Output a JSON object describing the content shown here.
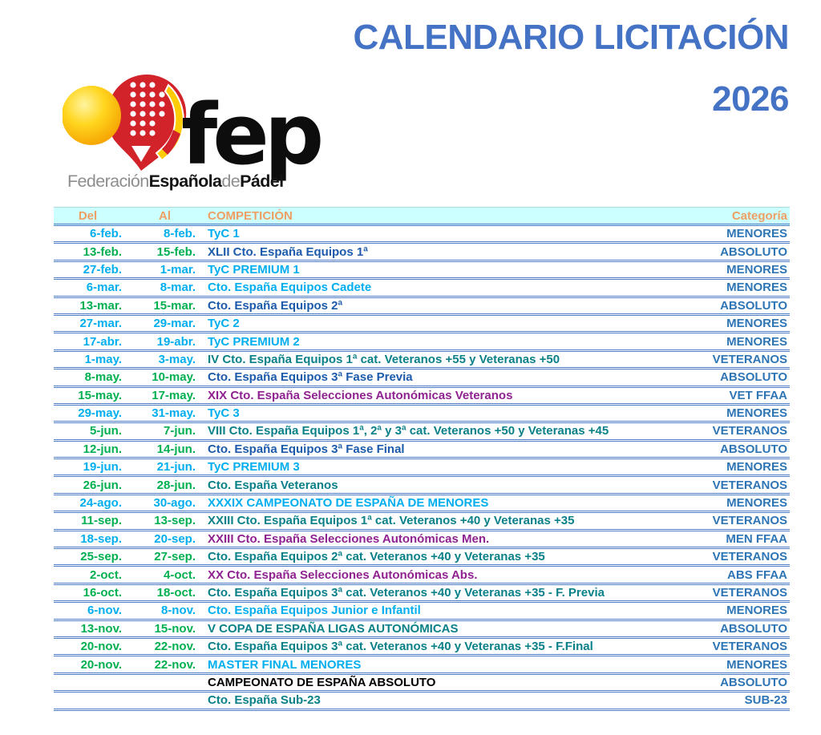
{
  "header": {
    "title_line1": "CALENDARIO LICITACIÓN",
    "title_year": "2026"
  },
  "logo": {
    "wordmark": "fep",
    "sub1": "Federación",
    "sub2": "Española",
    "sub3": "de",
    "sub4": "Pádel"
  },
  "colors": {
    "title_blue": "#4472c4",
    "header_bg": "#ccffff",
    "header_text": "#ef9f63",
    "border_blue": "#4e7dc6",
    "category_blue": "#2e75b6",
    "cyan": "#00aeef",
    "green": "#00b050",
    "dark_blue": "#1c5bab",
    "teal": "#0a8089",
    "purple": "#8f2290",
    "black": "#000000",
    "logo_red": "#d2232a",
    "logo_yellow": "#ffd200",
    "flag_yellow": "#ffcb05"
  },
  "table": {
    "columns": [
      "Del",
      "Al",
      "COMPETICIÓN",
      "Categoría"
    ],
    "rows": [
      {
        "del": "6-feb.",
        "al": "8-feb.",
        "competition": "TyC 1",
        "category": "MENORES",
        "date_color": "cyan",
        "comp_color": "cyan"
      },
      {
        "del": "13-feb.",
        "al": "15-feb.",
        "competition": "XLII Cto. España Equipos 1ª",
        "category": "ABSOLUTO",
        "date_color": "green",
        "comp_color": "dark_blue"
      },
      {
        "del": "27-feb.",
        "al": "1-mar.",
        "competition": "TyC PREMIUM 1",
        "category": "MENORES",
        "date_color": "cyan",
        "comp_color": "cyan"
      },
      {
        "del": "6-mar.",
        "al": "8-mar.",
        "competition": "Cto. España Equipos Cadete",
        "category": "MENORES",
        "date_color": "cyan",
        "comp_color": "cyan"
      },
      {
        "del": "13-mar.",
        "al": "15-mar.",
        "competition": "Cto. España Equipos 2ª",
        "category": "ABSOLUTO",
        "date_color": "green",
        "comp_color": "dark_blue"
      },
      {
        "del": "27-mar.",
        "al": "29-mar.",
        "competition": "TyC 2",
        "category": "MENORES",
        "date_color": "cyan",
        "comp_color": "cyan"
      },
      {
        "del": "17-abr.",
        "al": "19-abr.",
        "competition": "TyC PREMIUM 2",
        "category": "MENORES",
        "date_color": "cyan",
        "comp_color": "cyan"
      },
      {
        "del": "1-may.",
        "al": "3-may.",
        "competition": "IV Cto. España Equipos 1ª cat. Veteranos +55 y Veteranas +50",
        "category": "VETERANOS",
        "date_color": "cyan",
        "comp_color": "teal"
      },
      {
        "del": "8-may.",
        "al": "10-may.",
        "competition": "Cto. España Equipos 3ª Fase Previa",
        "category": "ABSOLUTO",
        "date_color": "green",
        "comp_color": "dark_blue"
      },
      {
        "del": "15-may.",
        "al": "17-may.",
        "competition": "XIX Cto. España Selecciones Autonómicas Veteranos",
        "category": "VET FFAA",
        "date_color": "green",
        "comp_color": "purple"
      },
      {
        "del": "29-may.",
        "al": "31-may.",
        "competition": "TyC 3",
        "category": "MENORES",
        "date_color": "cyan",
        "comp_color": "cyan"
      },
      {
        "del": "5-jun.",
        "al": "7-jun.",
        "competition": "VIII Cto. España Equipos 1ª, 2ª y 3ª cat. Veteranos +50 y Veteranas +45",
        "category": "VETERANOS",
        "date_color": "green",
        "comp_color": "teal"
      },
      {
        "del": "12-jun.",
        "al": "14-jun.",
        "competition": "Cto. España Equipos 3ª Fase Final",
        "category": "ABSOLUTO",
        "date_color": "green",
        "comp_color": "dark_blue"
      },
      {
        "del": "19-jun.",
        "al": "21-jun.",
        "competition": "TyC PREMIUM 3",
        "category": "MENORES",
        "date_color": "cyan",
        "comp_color": "cyan"
      },
      {
        "del": "26-jun.",
        "al": "28-jun.",
        "competition": "Cto. España Veteranos",
        "category": "VETERANOS",
        "date_color": "green",
        "comp_color": "teal"
      },
      {
        "del": "24-ago.",
        "al": "30-ago.",
        "competition": "XXXIX CAMPEONATO DE ESPAÑA DE MENORES",
        "category": "MENORES",
        "date_color": "cyan",
        "comp_color": "cyan"
      },
      {
        "del": "11-sep.",
        "al": "13-sep.",
        "competition": "XXIII Cto. España Equipos 1ª cat. Veteranos +40 y Veteranas +35",
        "category": "VETERANOS",
        "date_color": "green",
        "comp_color": "teal"
      },
      {
        "del": "18-sep.",
        "al": "20-sep.",
        "competition": "XXIII Cto. España Selecciones Autonómicas Men.",
        "category": "MEN FFAA",
        "date_color": "cyan",
        "comp_color": "purple"
      },
      {
        "del": "25-sep.",
        "al": "27-sep.",
        "competition": "Cto. España Equipos 2ª cat. Veteranos +40 y Veteranas +35",
        "category": "VETERANOS",
        "date_color": "green",
        "comp_color": "teal"
      },
      {
        "del": "2-oct.",
        "al": "4-oct.",
        "competition": "XX Cto. España Selecciones Autonómicas Abs.",
        "category": "ABS FFAA",
        "date_color": "green",
        "comp_color": "purple"
      },
      {
        "del": "16-oct.",
        "al": "18-oct.",
        "competition": "Cto. España Equipos 3ª cat. Veteranos +40 y Veteranas +35 - F. Previa",
        "category": "VETERANOS",
        "date_color": "green",
        "comp_color": "teal"
      },
      {
        "del": "6-nov.",
        "al": "8-nov.",
        "competition": "Cto. España Equipos Junior e Infantil",
        "category": "MENORES",
        "date_color": "cyan",
        "comp_color": "cyan"
      },
      {
        "del": "13-nov.",
        "al": "15-nov.",
        "competition": "V COPA DE ESPAÑA LIGAS AUTONÓMICAS",
        "category": "ABSOLUTO",
        "date_color": "green",
        "comp_color": "teal"
      },
      {
        "del": "20-nov.",
        "al": "22-nov.",
        "competition": "Cto. España Equipos 3ª cat. Veteranos +40 y Veteranas +35 - F.Final",
        "category": "VETERANOS",
        "date_color": "green",
        "comp_color": "teal"
      },
      {
        "del": "20-nov.",
        "al": "22-nov.",
        "competition": "MASTER FINAL MENORES",
        "category": "MENORES",
        "date_color": "green",
        "comp_color": "cyan"
      },
      {
        "del": "",
        "al": "",
        "competition": "CAMPEONATO DE ESPAÑA ABSOLUTO",
        "category": "ABSOLUTO",
        "date_color": "none",
        "comp_color": "black"
      },
      {
        "del": "",
        "al": "",
        "competition": "Cto. España Sub-23",
        "category": "SUB-23",
        "date_color": "none",
        "comp_color": "teal"
      }
    ]
  }
}
